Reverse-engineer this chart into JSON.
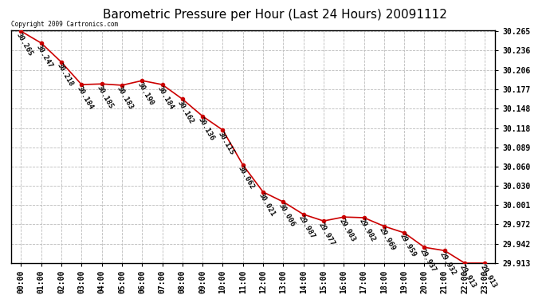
{
  "title": "Barometric Pressure per Hour (Last 24 Hours) 20091112",
  "copyright": "Copyright 2009 Cartronics.com",
  "hours": [
    "00:00",
    "01:00",
    "02:00",
    "03:00",
    "04:00",
    "05:00",
    "06:00",
    "07:00",
    "08:00",
    "09:00",
    "10:00",
    "11:00",
    "12:00",
    "13:00",
    "14:00",
    "15:00",
    "16:00",
    "17:00",
    "18:00",
    "19:00",
    "20:00",
    "21:00",
    "22:00",
    "23:00"
  ],
  "values": [
    30.265,
    30.247,
    30.218,
    30.184,
    30.185,
    30.183,
    30.19,
    30.184,
    30.162,
    30.136,
    30.115,
    30.062,
    30.021,
    30.006,
    29.987,
    29.977,
    29.983,
    29.982,
    29.969,
    29.959,
    29.937,
    29.932,
    29.913,
    29.913
  ],
  "ylim_min": 29.913,
  "ylim_max": 30.265,
  "yticks": [
    30.265,
    30.236,
    30.206,
    30.177,
    30.148,
    30.118,
    30.089,
    30.06,
    30.03,
    30.001,
    29.972,
    29.942,
    29.913
  ],
  "line_color": "#cc0000",
  "marker_color": "#cc0000",
  "background_color": "#ffffff",
  "grid_color": "#bbbbbb",
  "title_fontsize": 11,
  "label_fontsize": 7,
  "annotation_fontsize": 6.5,
  "annotation_rotation": -60
}
